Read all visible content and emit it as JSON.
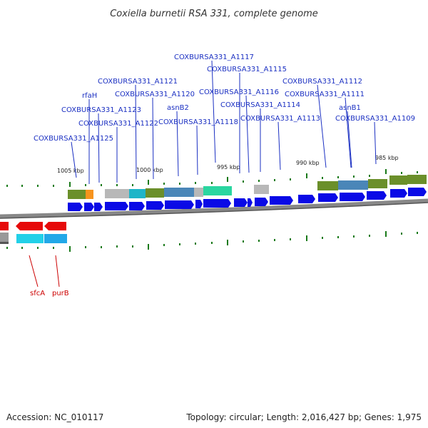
{
  "title": "Coxiella burnetii RSA 331, complete genome",
  "footer": {
    "accession": "Accession: NC_010117",
    "topology": "Topology: circular; Length: 2,016,427 bp; Genes: 1,975"
  },
  "colors": {
    "forward_cds": "#0a0ae6",
    "reverse_cds": "#e60a0a",
    "label_forward": "#1a2fc2",
    "label_reverse": "#cc0000",
    "tick": "#1a7a1a",
    "backbone": "#888888"
  },
  "scale_labels": [
    "1005 kbp",
    "1000 kbp",
    "995 kbp",
    "990 kbp",
    "985 kbp"
  ],
  "forward_labels": [
    "COXBURSA331_A1117",
    "COXBURSA331_A1115",
    "COXBURSA331_A1121",
    "COXBURSA331_A1116",
    "COXBURSA331_A1112",
    "rfaH",
    "COXBURSA331_A1120",
    "COXBURSA331_A1111",
    "COXBURSA331_A1114",
    "COXBURSA331_A1123",
    "asnB2",
    "asnB1",
    "COXBURSA331_A1122",
    "COXBURSA331_A1118",
    "COXBURSA331_A1113",
    "COXBURSA331_A1109",
    "COXBURSA331_A1125"
  ],
  "reverse_labels": [
    "sfcA",
    "purB"
  ]
}
